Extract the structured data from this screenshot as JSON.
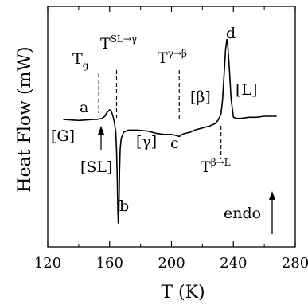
{
  "chart_data": {
    "type": "line",
    "xlabel": "T (K)",
    "ylabel": "Heat Flow (mW)",
    "xlim": [
      120,
      280
    ],
    "x_ticks": [
      "120",
      "160",
      "200",
      "240",
      "280"
    ],
    "grid": false,
    "legend": "none",
    "series": [
      {
        "x": [
          130,
          140,
          150,
          152,
          155,
          157,
          158,
          160,
          161,
          162,
          163,
          164,
          164.5,
          165,
          165.3,
          165.6,
          166,
          166.4,
          166.8,
          167.5,
          169,
          172,
          178,
          185,
          190,
          195,
          200,
          203,
          205,
          207,
          209,
          212,
          215,
          220,
          225,
          228,
          230,
          232,
          233,
          234,
          235,
          235.8,
          236.5,
          237.5,
          238.5,
          240,
          242,
          245,
          250,
          255,
          260,
          265,
          268
        ],
        "y": [
          0.0,
          -0.01,
          0.0,
          0.0,
          0.01,
          0.03,
          0.06,
          0.09,
          0.08,
          0.04,
          -0.02,
          -0.12,
          -0.3,
          -0.6,
          -0.85,
          -0.97,
          -0.85,
          -0.5,
          -0.28,
          -0.18,
          -0.12,
          -0.1,
          -0.1,
          -0.11,
          -0.13,
          -0.14,
          -0.14,
          -0.15,
          -0.16,
          -0.14,
          -0.13,
          -0.12,
          -0.1,
          -0.08,
          -0.06,
          -0.04,
          -0.01,
          0.05,
          0.18,
          0.42,
          0.66,
          0.75,
          0.68,
          0.45,
          0.2,
          0.02,
          0.01,
          0.01,
          0.02,
          0.02,
          0.03,
          0.03,
          0.03
        ]
      }
    ],
    "annotations": {
      "Tg": {
        "main": "T",
        "sub": "g",
        "x": 153
      },
      "T_SL_gamma": {
        "main": "T",
        "sup": "SL→γ",
        "x": 164.5
      },
      "T_gamma_beta": {
        "main": "T",
        "sup": "γ→β",
        "x": 205
      },
      "T_beta_L": {
        "main": "T",
        "sup": "β→L",
        "x": 232
      },
      "a": "a",
      "b": "b",
      "c": "c",
      "d": "d",
      "G": "[G]",
      "SL": "[SL]",
      "gamma": "[γ]",
      "beta": "[β]",
      "L": "[L]",
      "endo": "endo"
    }
  }
}
